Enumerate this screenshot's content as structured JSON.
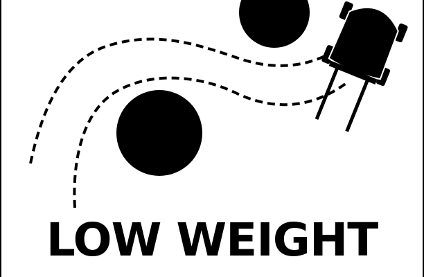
{
  "caption": {
    "text": "LOW WEIGHT"
  },
  "colors": {
    "ink": "#000000",
    "paper": "#ffffff"
  },
  "icons": {
    "obstacle_top": "obstacle-circle-icon",
    "obstacle_bottom": "obstacle-circle-icon",
    "vehicle": "forklift-top-view-icon",
    "path": "dashed-path-icon"
  }
}
